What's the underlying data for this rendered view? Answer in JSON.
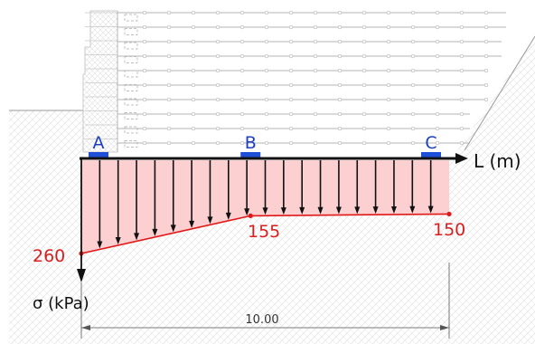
{
  "diagram": {
    "points": [
      {
        "label": "A",
        "pos_m": 0.0
      },
      {
        "label": "B",
        "pos_m": 4.6
      },
      {
        "label": "C",
        "pos_m": 9.0
      }
    ],
    "pressure_values": [
      {
        "label": "260",
        "pos_m": 0.0,
        "value_kpa": 260
      },
      {
        "label": "155",
        "pos_m": 4.6,
        "value_kpa": 155
      },
      {
        "label": "150",
        "pos_m": 10.0,
        "value_kpa": 150
      }
    ],
    "axis_x_label": "L (m)",
    "axis_y_label": "σ (kPa)",
    "dimension_label": "10.00",
    "length_m": 10.0,
    "colors": {
      "stress_fill": "#fcd0d0",
      "stress_line": "#e01818",
      "value_text": "#d81e1e",
      "point_label": "#1d3fbf",
      "pad": "#1f4fd6",
      "axis": "#111111"
    }
  }
}
